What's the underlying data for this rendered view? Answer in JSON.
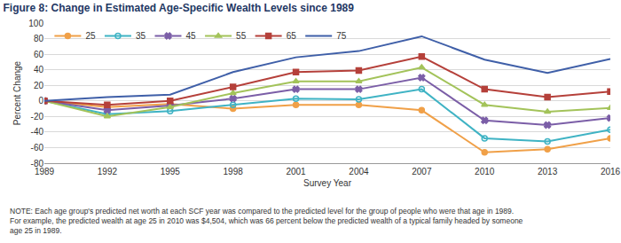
{
  "chart_data": {
    "type": "line",
    "title": "Figure 8: Change in Estimated Age-Specific Wealth Levels since 1989",
    "x_label": "Survey Year",
    "y_label": "Percent Change",
    "note": [
      "NOTE: Each age group's predicted net worth at each SCF year was compared to the predicted level for the group of people who were that age in 1989.",
      "For example, the predicted wealth at age 25 in 2010 was $4,504, which was 66 percent below the predicted wealth of a typical family headed by someone",
      "age 25 in 1989."
    ],
    "x": [
      1989,
      1992,
      1995,
      1998,
      2001,
      2004,
      2007,
      2010,
      2013,
      2016
    ],
    "xlim": [
      1989,
      2016
    ],
    "xticks": [
      1989,
      1992,
      1995,
      1998,
      2001,
      2004,
      2007,
      2010,
      2013,
      2016
    ],
    "ylim": [
      -80,
      100
    ],
    "yticks": [
      -80,
      -60,
      -40,
      -20,
      0,
      20,
      40,
      60,
      80,
      100
    ],
    "grid": true,
    "legend": "upper left",
    "series": [
      {
        "name": "25",
        "color": "#f0a048",
        "marker": "circle",
        "values": [
          0,
          -8,
          -4,
          -10,
          -5,
          -5,
          -12,
          -66,
          -62,
          -48
        ]
      },
      {
        "name": "35",
        "color": "#3fb3c4",
        "marker": "circle-open",
        "values": [
          0,
          -17,
          -13,
          -5,
          3,
          2,
          15,
          -48,
          -52,
          -37
        ]
      },
      {
        "name": "45",
        "color": "#7b5ea7",
        "marker": "x",
        "values": [
          0,
          -12,
          -6,
          3,
          15,
          15,
          30,
          -25,
          -31,
          -22
        ]
      },
      {
        "name": "55",
        "color": "#a3c35a",
        "marker": "triangle-up",
        "values": [
          0,
          -20,
          -8,
          10,
          25,
          25,
          43,
          -5,
          -14,
          -9
        ]
      },
      {
        "name": "65",
        "color": "#b5403a",
        "marker": "square",
        "values": [
          0,
          -5,
          0,
          18,
          37,
          39,
          57,
          15,
          5,
          12
        ]
      },
      {
        "name": "75",
        "color": "#3f5fa8",
        "marker": "none",
        "values": [
          0,
          5,
          8,
          37,
          56,
          64,
          83,
          53,
          36,
          54
        ]
      }
    ]
  }
}
